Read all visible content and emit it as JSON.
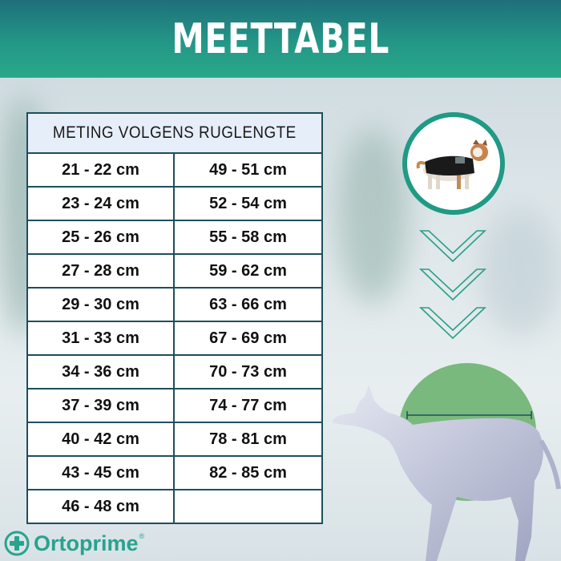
{
  "header": {
    "title": "MEETTABEL"
  },
  "table": {
    "heading": "METING VOLGENS RUGLENGTE",
    "rows": [
      {
        "left": "21 - 22 cm",
        "right": "49 - 51 cm"
      },
      {
        "left": "23 - 24 cm",
        "right": "52 - 54 cm"
      },
      {
        "left": "25 - 26 cm",
        "right": "55 - 58 cm"
      },
      {
        "left": "27 - 28 cm",
        "right": "59 - 62 cm"
      },
      {
        "left": "29 - 30 cm",
        "right": "63 - 66 cm"
      },
      {
        "left": "31 - 33 cm",
        "right": "67 - 69 cm"
      },
      {
        "left": "34 - 36 cm",
        "right": "70 - 73 cm"
      },
      {
        "left": "37 - 39 cm",
        "right": "74 - 77 cm"
      },
      {
        "left": "40 - 42 cm",
        "right": "78 - 81 cm"
      },
      {
        "left": "43 - 45 cm",
        "right": "82 - 85 cm"
      },
      {
        "left": "46 - 48 cm",
        "right": ""
      }
    ]
  },
  "logo": {
    "text": "Ortoprime",
    "registered": "®"
  },
  "colors": {
    "brand_teal": "#27a38f",
    "table_border": "#1d4f5e",
    "table_header_bg": "#e6eef9",
    "measure_circle": "#79b97d"
  },
  "icons": [
    "dog-with-coat-photo",
    "chevron-down-icon",
    "dog-silhouette",
    "ortoprime-plus-icon"
  ]
}
